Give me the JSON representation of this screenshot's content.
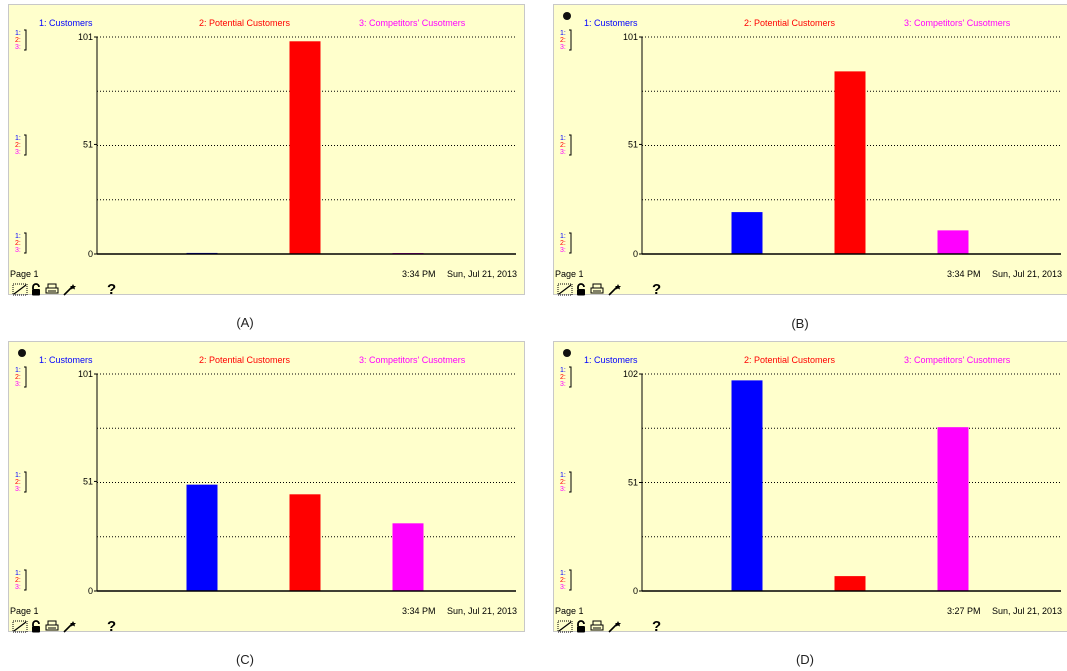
{
  "colors": {
    "customers": "#0000ff",
    "potential": "#ff0000",
    "competitors": "#ff00ff",
    "background": "#ffffcc"
  },
  "legend": {
    "customers": "1: Customers",
    "potential": "2: Potential Customers",
    "competitors": "3: Competitors' Cusotmers"
  },
  "footer": {
    "page": "Page 1",
    "help": "?"
  },
  "panels": [
    {
      "caption": "(A)",
      "time": "3:34 PM",
      "date": "Sun, Jul 21, 2013",
      "show_circle_icon": false,
      "y_ticks": [
        "101",
        "51",
        "0"
      ]
    },
    {
      "caption": "(B)",
      "time": "3:34 PM",
      "date": "Sun, Jul 21, 2013",
      "show_circle_icon": true,
      "y_ticks": [
        "101",
        "51",
        "0"
      ]
    },
    {
      "caption": "(C)",
      "time": "3:34 PM",
      "date": "Sun, Jul 21, 2013",
      "show_circle_icon": true,
      "y_ticks": [
        "101",
        "51",
        "0"
      ]
    },
    {
      "caption": "(D)",
      "time": "3:27 PM",
      "date": "Sun, Jul 21, 2013",
      "show_circle_icon": true,
      "y_ticks": [
        "102",
        "51",
        "0"
      ]
    }
  ],
  "chart_data": [
    {
      "type": "bar",
      "categories": [
        "1: Customers",
        "2: Potential Customers",
        "3: Competitors' Cusotmers"
      ],
      "values": [
        0.5,
        99,
        0.3
      ],
      "ylim": [
        0,
        101
      ],
      "yticks": [
        0,
        51,
        101
      ],
      "grid": true
    },
    {
      "type": "bar",
      "categories": [
        "1: Customers",
        "2: Potential Customers",
        "3: Competitors' Cusotmers"
      ],
      "values": [
        19.5,
        85,
        11
      ],
      "ylim": [
        0,
        101
      ],
      "yticks": [
        0,
        51,
        101
      ],
      "grid": true
    },
    {
      "type": "bar",
      "categories": [
        "1: Customers",
        "2: Potential Customers",
        "3: Competitors' Cusotmers"
      ],
      "values": [
        49.5,
        45,
        31.5
      ],
      "ylim": [
        0,
        101
      ],
      "yticks": [
        0,
        51,
        101
      ],
      "grid": true
    },
    {
      "type": "bar",
      "categories": [
        "1: Customers",
        "2: Potential Customers",
        "3: Competitors' Cusotmers"
      ],
      "values": [
        99,
        7,
        77
      ],
      "ylim": [
        0,
        102
      ],
      "yticks": [
        0,
        51,
        102
      ],
      "grid": true
    }
  ]
}
